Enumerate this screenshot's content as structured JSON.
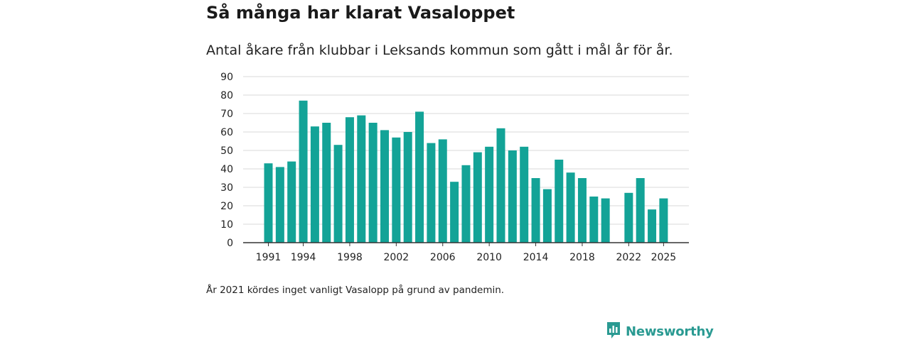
{
  "header": {
    "title": "Så många har klarat Vasaloppet",
    "subtitle": "Antal åkare från klubbar i Leksands kommun som gått i mål år för år."
  },
  "footer": {
    "note": "År 2021 kördes inget vanligt Vasalopp på grund av pandemin.",
    "brand": "Newsworthy"
  },
  "colors": {
    "bar": "#13a397",
    "grid": "#d9d9d9",
    "axis": "#333333",
    "brand": "#2a9a92"
  },
  "chart_data": {
    "type": "bar",
    "title": "Så många har klarat Vasaloppet",
    "subtitle": "Antal åkare från klubbar i Leksands kommun som gått i mål år för år.",
    "xlabel": "",
    "ylabel": "",
    "ylim": [
      0,
      90
    ],
    "yticks": [
      0,
      10,
      20,
      30,
      40,
      50,
      60,
      70,
      80,
      90
    ],
    "xticks": [
      1991,
      1994,
      1998,
      2002,
      2006,
      2010,
      2014,
      2018,
      2022,
      2025
    ],
    "grid": true,
    "categories": [
      1991,
      1992,
      1993,
      1994,
      1995,
      1996,
      1997,
      1998,
      1999,
      2000,
      2001,
      2002,
      2003,
      2004,
      2005,
      2006,
      2007,
      2008,
      2009,
      2010,
      2011,
      2012,
      2013,
      2014,
      2015,
      2016,
      2017,
      2018,
      2019,
      2020,
      2021,
      2022,
      2023,
      2024,
      2025
    ],
    "values": [
      43,
      41,
      44,
      77,
      63,
      65,
      53,
      68,
      69,
      65,
      61,
      57,
      60,
      71,
      54,
      56,
      33,
      42,
      49,
      52,
      62,
      50,
      52,
      35,
      29,
      45,
      38,
      35,
      25,
      24,
      null,
      27,
      35,
      18,
      24
    ]
  }
}
